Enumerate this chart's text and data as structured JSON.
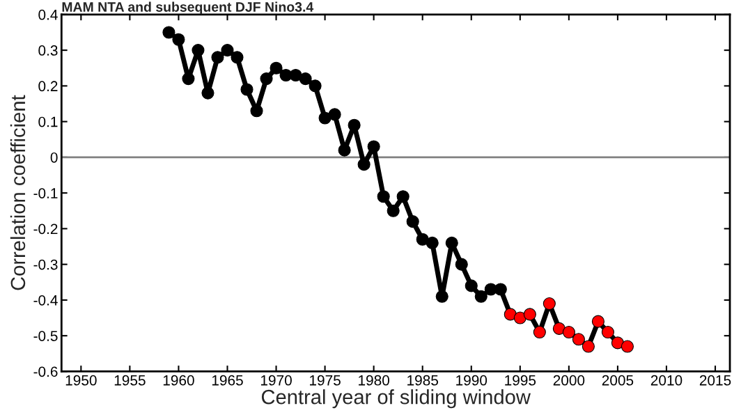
{
  "chart_data": {
    "type": "line",
    "title": "MAM NTA and subsequent DJF Nino3.4",
    "xlabel": "Central year of sliding window",
    "ylabel": "Correlation coefficient",
    "x": [
      1959,
      1960,
      1961,
      1962,
      1963,
      1964,
      1965,
      1966,
      1967,
      1968,
      1969,
      1970,
      1971,
      1972,
      1973,
      1974,
      1975,
      1976,
      1977,
      1978,
      1979,
      1980,
      1981,
      1982,
      1983,
      1984,
      1985,
      1986,
      1987,
      1988,
      1989,
      1990,
      1991,
      1992,
      1993,
      1994,
      1995,
      1996,
      1997,
      1998,
      1999,
      2000,
      2001,
      2002,
      2003,
      2004,
      2005,
      2006
    ],
    "series": [
      {
        "color": "#000000",
        "values": [
          0.35,
          0.33,
          0.22,
          0.3,
          0.18,
          0.28,
          0.3,
          0.28,
          0.19,
          0.13,
          0.22,
          0.25,
          0.23,
          0.23,
          0.22,
          0.2,
          0.11,
          0.12,
          0.02,
          0.09,
          -0.02,
          0.03,
          -0.11,
          -0.15,
          -0.11,
          -0.18,
          -0.23,
          -0.24,
          -0.39,
          -0.24,
          -0.3,
          -0.36,
          -0.39,
          -0.37,
          -0.37,
          -0.44,
          -0.45,
          -0.44,
          -0.49,
          -0.41,
          -0.48,
          -0.49,
          -0.51,
          -0.53,
          -0.46,
          -0.49,
          -0.52,
          -0.53
        ],
        "colors": [
          "#000000",
          "#000000",
          "#000000",
          "#000000",
          "#000000",
          "#000000",
          "#000000",
          "#000000",
          "#000000",
          "#000000",
          "#000000",
          "#000000",
          "#000000",
          "#000000",
          "#000000",
          "#000000",
          "#000000",
          "#000000",
          "#000000",
          "#000000",
          "#000000",
          "#000000",
          "#000000",
          "#000000",
          "#000000",
          "#000000",
          "#000000",
          "#000000",
          "#000000",
          "#000000",
          "#000000",
          "#000000",
          "#000000",
          "#000000",
          "#000000",
          "#ff0000",
          "#ff0000",
          "#ff0000",
          "#ff0000",
          "#ff0000",
          "#ff0000",
          "#ff0000",
          "#ff0000",
          "#ff0000",
          "#ff0000",
          "#ff0000",
          "#ff0000",
          "#ff0000"
        ]
      }
    ],
    "xlim": [
      1948,
      2016.5
    ],
    "xticks": [
      1950,
      1955,
      1960,
      1965,
      1970,
      1975,
      1980,
      1985,
      1990,
      1995,
      2000,
      2005,
      2010,
      2015
    ],
    "ylim": [
      -0.6,
      0.4
    ],
    "yticks": [
      -0.6,
      -0.5,
      -0.4,
      -0.3,
      -0.2,
      -0.1,
      0,
      0.1,
      0.2,
      0.3,
      0.4
    ],
    "ref_lines": [
      {
        "axis": "y",
        "value": 0,
        "color": "#808080"
      }
    ],
    "grid": false,
    "marker": "circle",
    "line_style": "solid"
  }
}
